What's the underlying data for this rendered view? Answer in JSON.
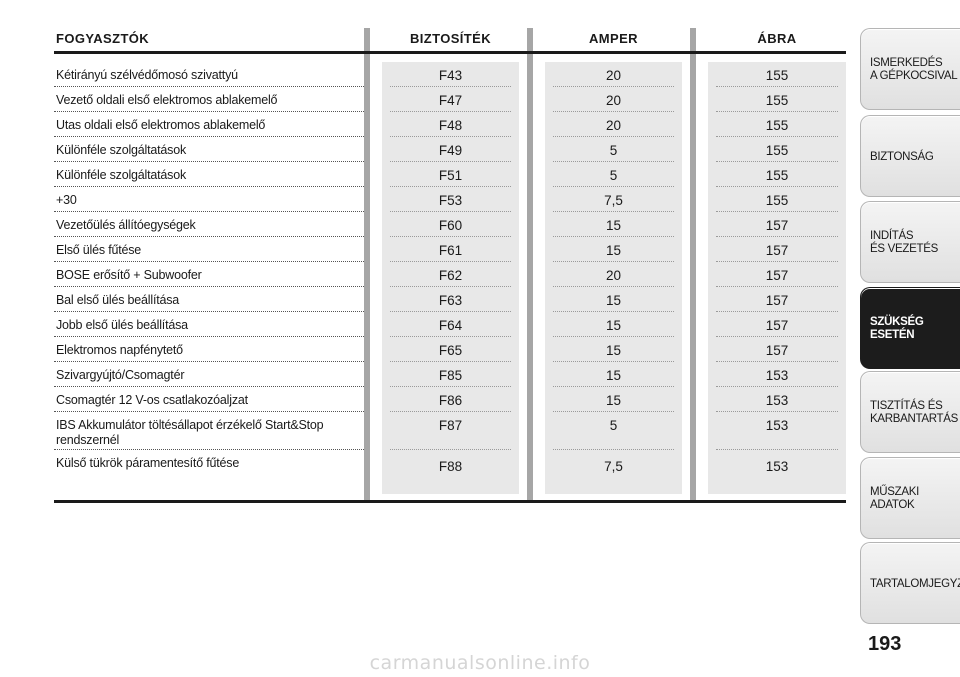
{
  "table": {
    "headers": {
      "consumers": "FOGYASZTÓK",
      "fuse": "BIZTOSÍTÉK",
      "amper": "AMPER",
      "figure": "ÁBRA"
    },
    "rows": [
      {
        "name": "Kétirányú szélvédőmosó szivattyú",
        "fuse": "F43",
        "amp": "20",
        "fig": "155"
      },
      {
        "name": "Vezető oldali első elektromos ablakemelő",
        "fuse": "F47",
        "amp": "20",
        "fig": "155"
      },
      {
        "name": "Utas oldali első elektromos ablakemelő",
        "fuse": "F48",
        "amp": "20",
        "fig": "155"
      },
      {
        "name": "Különféle szolgáltatások",
        "fuse": "F49",
        "amp": "5",
        "fig": "155"
      },
      {
        "name": "Különféle szolgáltatások",
        "fuse": "F51",
        "amp": "5",
        "fig": "155"
      },
      {
        "name": "+30",
        "fuse": "F53",
        "amp": "7,5",
        "fig": "155"
      },
      {
        "name": "Vezetőülés állítóegységek",
        "fuse": "F60",
        "amp": "15",
        "fig": "157"
      },
      {
        "name": "Első ülés fűtése",
        "fuse": "F61",
        "amp": "15",
        "fig": "157"
      },
      {
        "name": "BOSE erősítő + Subwoofer",
        "fuse": "F62",
        "amp": "20",
        "fig": "157"
      },
      {
        "name": "Bal első ülés beállítása",
        "fuse": "F63",
        "amp": "15",
        "fig": "157"
      },
      {
        "name": "Jobb első ülés beállítása",
        "fuse": "F64",
        "amp": "15",
        "fig": "157"
      },
      {
        "name": "Elektromos napfénytető",
        "fuse": "F65",
        "amp": "15",
        "fig": "157"
      },
      {
        "name": "Szivargyújtó/Csomagtér",
        "fuse": "F85",
        "amp": "15",
        "fig": "153"
      },
      {
        "name": "Csomagtér 12 V-os csatlakozóaljzat",
        "fuse": "F86",
        "amp": "15",
        "fig": "153"
      },
      {
        "name": "IBS Akkumulátor töltésállapot érzékelő Start&Stop\nrendszernél",
        "fuse": "F87",
        "amp": "5",
        "fig": "153"
      },
      {
        "name": "Külső tükrök páramentesítő fűtése",
        "fuse": "F88",
        "amp": "7,5",
        "fig": "153"
      }
    ]
  },
  "tabs": [
    {
      "label": "ISMERKEDÉS\nA GÉPKOCSIVAL",
      "active": false
    },
    {
      "label": "BIZTONSÁG",
      "active": false
    },
    {
      "label": "INDÍTÁS\nÉS VEZETÉS",
      "active": false
    },
    {
      "label": "SZÜKSÉG\nESETÉN",
      "active": true
    },
    {
      "label": "TISZTÍTÁS ÉS\nKARBANTARTÁS",
      "active": false
    },
    {
      "label": "MŰSZAKI\nADATOK",
      "active": false
    },
    {
      "label": "TARTALOMJEGYZÉK",
      "active": false
    }
  ],
  "page_number": "193",
  "watermark": "carmanualsonline.info"
}
